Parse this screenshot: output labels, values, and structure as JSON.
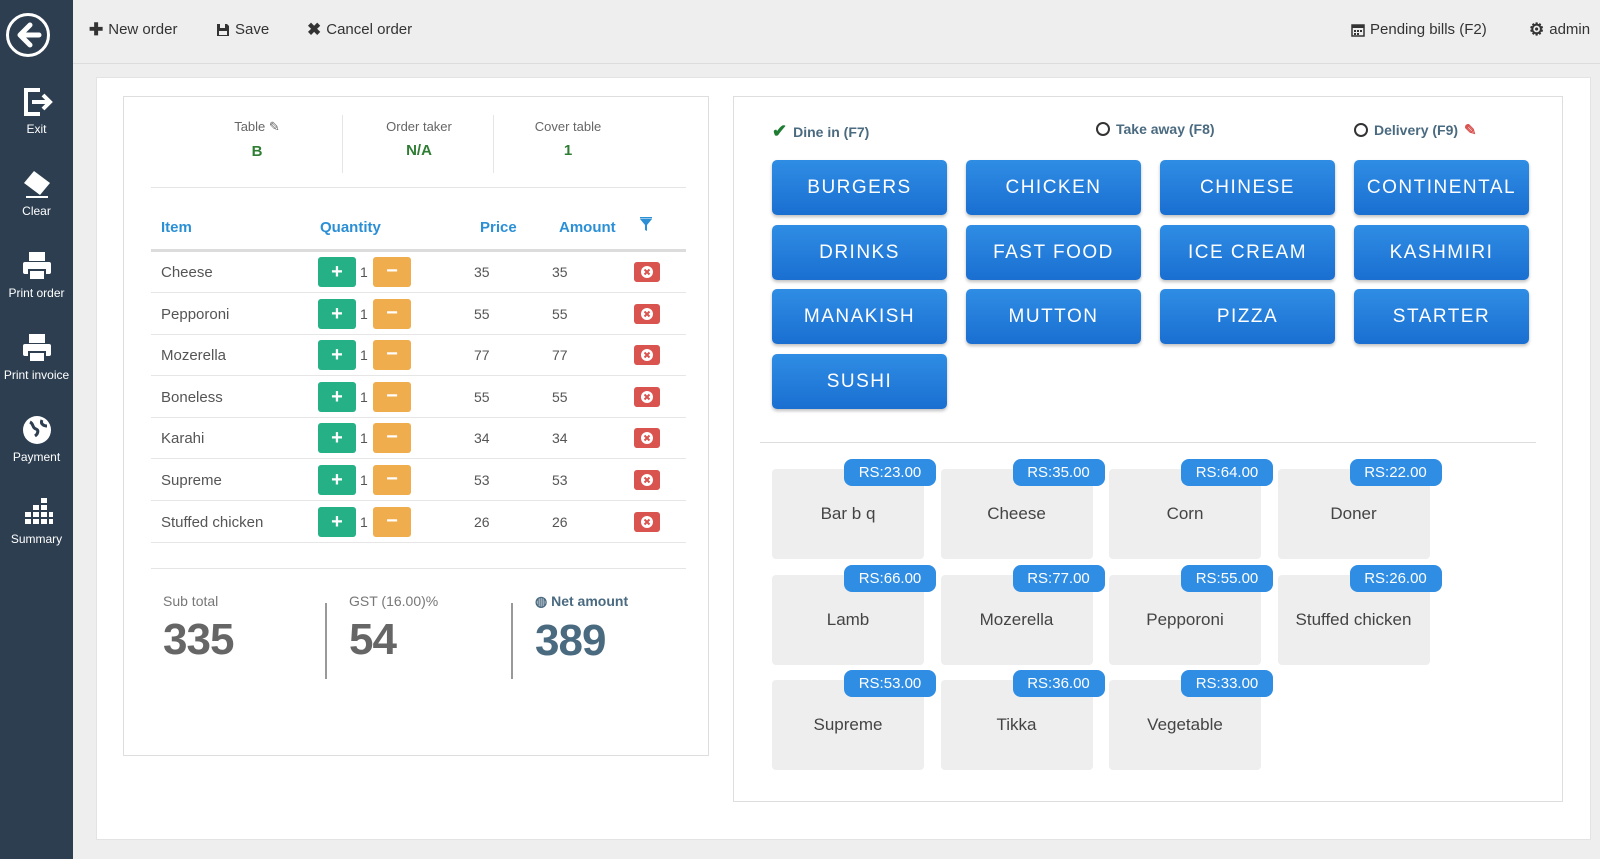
{
  "sidebar": {
    "items": [
      {
        "label": "Exit",
        "icon": "exit-icon"
      },
      {
        "label": "Clear",
        "icon": "eraser-icon"
      },
      {
        "label": "Print order",
        "icon": "printer-icon"
      },
      {
        "label": "Print invoice",
        "icon": "printer-icon"
      },
      {
        "label": "Payment",
        "icon": "globe-icon"
      },
      {
        "label": "Summary",
        "icon": "summary-grid-icon"
      }
    ]
  },
  "toolbar": {
    "new_order": "New order",
    "save": "Save",
    "cancel_order": "Cancel order",
    "pending_bills": "Pending bills (F2)",
    "user": "admin"
  },
  "order": {
    "table_label": "Table",
    "table_value": "B",
    "order_taker_label": "Order taker",
    "order_taker_value": "N/A",
    "cover_label": "Cover table",
    "cover_value": "1",
    "columns": {
      "item": "Item",
      "quantity": "Quantity",
      "price": "Price",
      "amount": "Amount"
    },
    "items": [
      {
        "name": "Cheese",
        "qty": "1",
        "price": "35",
        "amount": "35"
      },
      {
        "name": "Pepporoni",
        "qty": "1",
        "price": "55",
        "amount": "55"
      },
      {
        "name": "Mozerella",
        "qty": "1",
        "price": "77",
        "amount": "77"
      },
      {
        "name": "Boneless",
        "qty": "1",
        "price": "55",
        "amount": "55"
      },
      {
        "name": "Karahi",
        "qty": "1",
        "price": "34",
        "amount": "34"
      },
      {
        "name": "Supreme",
        "qty": "1",
        "price": "53",
        "amount": "53"
      },
      {
        "name": "Stuffed chicken",
        "qty": "1",
        "price": "26",
        "amount": "26"
      }
    ],
    "subtotal_label": "Sub total",
    "subtotal": "335",
    "gst_label": "GST (16.00)%",
    "gst": "54",
    "net_label": "Net amount",
    "net": "389"
  },
  "order_types": {
    "dine_in": "Dine in (F7)",
    "take_away": "Take away (F8)",
    "delivery": "Delivery (F9)",
    "selected": "Dine in (F7)"
  },
  "categories": [
    "BURGERS",
    "CHICKEN",
    "CHINESE",
    "CONTINENTAL",
    "DRINKS",
    "FAST FOOD",
    "ICE CREAM",
    "KASHMIRI",
    "MANAKISH",
    "MUTTON",
    "PIZZA",
    "STARTER",
    "SUSHI"
  ],
  "products": [
    {
      "name": "Bar b q",
      "price": "RS:23.00"
    },
    {
      "name": "Cheese",
      "price": "RS:35.00"
    },
    {
      "name": "Corn",
      "price": "RS:64.00"
    },
    {
      "name": "Doner",
      "price": "RS:22.00"
    },
    {
      "name": "Lamb",
      "price": "RS:66.00"
    },
    {
      "name": "Mozerella",
      "price": "RS:77.00"
    },
    {
      "name": "Pepporoni",
      "price": "RS:55.00"
    },
    {
      "name": "Stuffed chicken",
      "price": "RS:26.00"
    },
    {
      "name": "Supreme",
      "price": "RS:53.00"
    },
    {
      "name": "Tikka",
      "price": "RS:36.00"
    },
    {
      "name": "Vegetable",
      "price": "RS:33.00"
    }
  ],
  "colors": {
    "sidebar": "#2c3e50",
    "accent_blue": "#2f8de4",
    "plus_green": "#26b085",
    "minus_orange": "#f0ad4e",
    "delete_red": "#d9534f",
    "value_green": "#2e7d32"
  }
}
